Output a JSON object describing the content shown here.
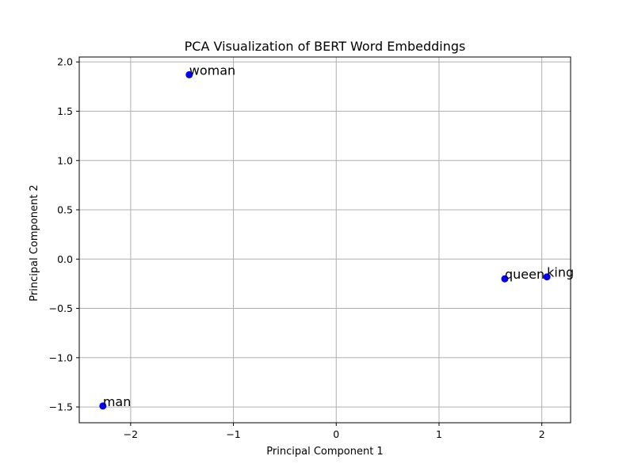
{
  "chart_data": {
    "type": "scatter",
    "title": "PCA Visualization of BERT Word Embeddings",
    "xlabel": "Principal Component 1",
    "ylabel": "Principal Component 2",
    "xlim": [
      -2.5,
      2.28
    ],
    "ylim": [
      -1.66,
      2.05
    ],
    "xticks": [
      -2,
      -1,
      0,
      1,
      2
    ],
    "xtick_labels": [
      "−2",
      "−1",
      "0",
      "1",
      "2"
    ],
    "yticks": [
      -1.5,
      -1.0,
      -0.5,
      0.0,
      0.5,
      1.0,
      1.5,
      2.0
    ],
    "ytick_labels": [
      "−1.5",
      "−1.0",
      "−0.5",
      "0.0",
      "0.5",
      "1.0",
      "1.5",
      "2.0"
    ],
    "grid": true,
    "marker_color": "#0000ff",
    "points": [
      {
        "label": "king",
        "x": 2.05,
        "y": -0.18
      },
      {
        "label": "queen",
        "x": 1.64,
        "y": -0.2
      },
      {
        "label": "man",
        "x": -2.27,
        "y": -1.49
      },
      {
        "label": "woman",
        "x": -1.43,
        "y": 1.87
      }
    ]
  }
}
